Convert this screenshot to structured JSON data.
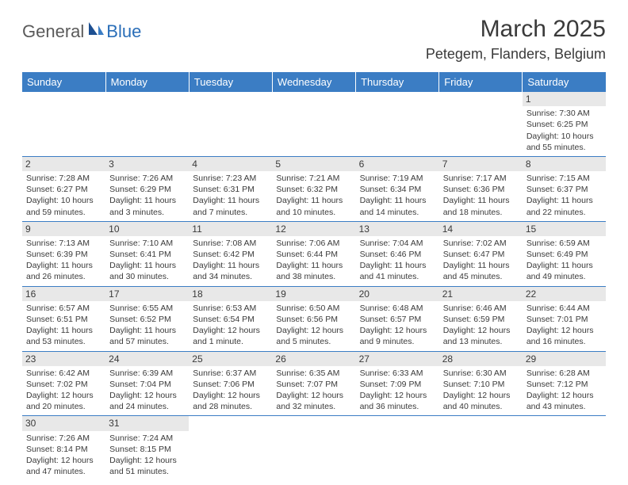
{
  "logo": {
    "general": "General",
    "blue": "Blue"
  },
  "title": "March 2025",
  "location": "Petegem, Flanders, Belgium",
  "colors": {
    "header_bg": "#3b7dc4",
    "header_text": "#ffffff",
    "daynum_bg": "#e8e8e8",
    "row_border": "#3b7dc4",
    "text": "#3a3a3a"
  },
  "weekdays": [
    "Sunday",
    "Monday",
    "Tuesday",
    "Wednesday",
    "Thursday",
    "Friday",
    "Saturday"
  ],
  "weeks": [
    [
      null,
      null,
      null,
      null,
      null,
      null,
      {
        "day": "1",
        "sunrise": "Sunrise: 7:30 AM",
        "sunset": "Sunset: 6:25 PM",
        "daylight": "Daylight: 10 hours and 55 minutes."
      }
    ],
    [
      {
        "day": "2",
        "sunrise": "Sunrise: 7:28 AM",
        "sunset": "Sunset: 6:27 PM",
        "daylight": "Daylight: 10 hours and 59 minutes."
      },
      {
        "day": "3",
        "sunrise": "Sunrise: 7:26 AM",
        "sunset": "Sunset: 6:29 PM",
        "daylight": "Daylight: 11 hours and 3 minutes."
      },
      {
        "day": "4",
        "sunrise": "Sunrise: 7:23 AM",
        "sunset": "Sunset: 6:31 PM",
        "daylight": "Daylight: 11 hours and 7 minutes."
      },
      {
        "day": "5",
        "sunrise": "Sunrise: 7:21 AM",
        "sunset": "Sunset: 6:32 PM",
        "daylight": "Daylight: 11 hours and 10 minutes."
      },
      {
        "day": "6",
        "sunrise": "Sunrise: 7:19 AM",
        "sunset": "Sunset: 6:34 PM",
        "daylight": "Daylight: 11 hours and 14 minutes."
      },
      {
        "day": "7",
        "sunrise": "Sunrise: 7:17 AM",
        "sunset": "Sunset: 6:36 PM",
        "daylight": "Daylight: 11 hours and 18 minutes."
      },
      {
        "day": "8",
        "sunrise": "Sunrise: 7:15 AM",
        "sunset": "Sunset: 6:37 PM",
        "daylight": "Daylight: 11 hours and 22 minutes."
      }
    ],
    [
      {
        "day": "9",
        "sunrise": "Sunrise: 7:13 AM",
        "sunset": "Sunset: 6:39 PM",
        "daylight": "Daylight: 11 hours and 26 minutes."
      },
      {
        "day": "10",
        "sunrise": "Sunrise: 7:10 AM",
        "sunset": "Sunset: 6:41 PM",
        "daylight": "Daylight: 11 hours and 30 minutes."
      },
      {
        "day": "11",
        "sunrise": "Sunrise: 7:08 AM",
        "sunset": "Sunset: 6:42 PM",
        "daylight": "Daylight: 11 hours and 34 minutes."
      },
      {
        "day": "12",
        "sunrise": "Sunrise: 7:06 AM",
        "sunset": "Sunset: 6:44 PM",
        "daylight": "Daylight: 11 hours and 38 minutes."
      },
      {
        "day": "13",
        "sunrise": "Sunrise: 7:04 AM",
        "sunset": "Sunset: 6:46 PM",
        "daylight": "Daylight: 11 hours and 41 minutes."
      },
      {
        "day": "14",
        "sunrise": "Sunrise: 7:02 AM",
        "sunset": "Sunset: 6:47 PM",
        "daylight": "Daylight: 11 hours and 45 minutes."
      },
      {
        "day": "15",
        "sunrise": "Sunrise: 6:59 AM",
        "sunset": "Sunset: 6:49 PM",
        "daylight": "Daylight: 11 hours and 49 minutes."
      }
    ],
    [
      {
        "day": "16",
        "sunrise": "Sunrise: 6:57 AM",
        "sunset": "Sunset: 6:51 PM",
        "daylight": "Daylight: 11 hours and 53 minutes."
      },
      {
        "day": "17",
        "sunrise": "Sunrise: 6:55 AM",
        "sunset": "Sunset: 6:52 PM",
        "daylight": "Daylight: 11 hours and 57 minutes."
      },
      {
        "day": "18",
        "sunrise": "Sunrise: 6:53 AM",
        "sunset": "Sunset: 6:54 PM",
        "daylight": "Daylight: 12 hours and 1 minute."
      },
      {
        "day": "19",
        "sunrise": "Sunrise: 6:50 AM",
        "sunset": "Sunset: 6:56 PM",
        "daylight": "Daylight: 12 hours and 5 minutes."
      },
      {
        "day": "20",
        "sunrise": "Sunrise: 6:48 AM",
        "sunset": "Sunset: 6:57 PM",
        "daylight": "Daylight: 12 hours and 9 minutes."
      },
      {
        "day": "21",
        "sunrise": "Sunrise: 6:46 AM",
        "sunset": "Sunset: 6:59 PM",
        "daylight": "Daylight: 12 hours and 13 minutes."
      },
      {
        "day": "22",
        "sunrise": "Sunrise: 6:44 AM",
        "sunset": "Sunset: 7:01 PM",
        "daylight": "Daylight: 12 hours and 16 minutes."
      }
    ],
    [
      {
        "day": "23",
        "sunrise": "Sunrise: 6:42 AM",
        "sunset": "Sunset: 7:02 PM",
        "daylight": "Daylight: 12 hours and 20 minutes."
      },
      {
        "day": "24",
        "sunrise": "Sunrise: 6:39 AM",
        "sunset": "Sunset: 7:04 PM",
        "daylight": "Daylight: 12 hours and 24 minutes."
      },
      {
        "day": "25",
        "sunrise": "Sunrise: 6:37 AM",
        "sunset": "Sunset: 7:06 PM",
        "daylight": "Daylight: 12 hours and 28 minutes."
      },
      {
        "day": "26",
        "sunrise": "Sunrise: 6:35 AM",
        "sunset": "Sunset: 7:07 PM",
        "daylight": "Daylight: 12 hours and 32 minutes."
      },
      {
        "day": "27",
        "sunrise": "Sunrise: 6:33 AM",
        "sunset": "Sunset: 7:09 PM",
        "daylight": "Daylight: 12 hours and 36 minutes."
      },
      {
        "day": "28",
        "sunrise": "Sunrise: 6:30 AM",
        "sunset": "Sunset: 7:10 PM",
        "daylight": "Daylight: 12 hours and 40 minutes."
      },
      {
        "day": "29",
        "sunrise": "Sunrise: 6:28 AM",
        "sunset": "Sunset: 7:12 PM",
        "daylight": "Daylight: 12 hours and 43 minutes."
      }
    ],
    [
      {
        "day": "30",
        "sunrise": "Sunrise: 7:26 AM",
        "sunset": "Sunset: 8:14 PM",
        "daylight": "Daylight: 12 hours and 47 minutes."
      },
      {
        "day": "31",
        "sunrise": "Sunrise: 7:24 AM",
        "sunset": "Sunset: 8:15 PM",
        "daylight": "Daylight: 12 hours and 51 minutes."
      },
      null,
      null,
      null,
      null,
      null
    ]
  ]
}
